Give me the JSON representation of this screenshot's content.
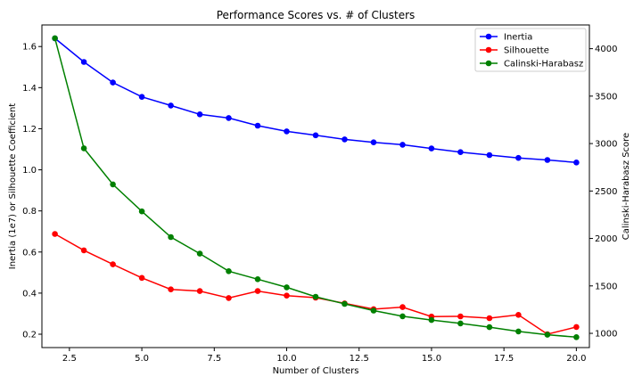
{
  "chart_data": {
    "type": "line",
    "title": "Performance Scores vs. # of Clusters",
    "xlabel": "Number of Clusters",
    "ylabel_left": "Inertia (1e7) or Silhouette Coefficient",
    "ylabel_right": "Calinski-Harabasz Score",
    "xlim": [
      1.55,
      20.45
    ],
    "ylim_left": [
      0.135,
      1.705
    ],
    "ylim_right": [
      850,
      4250
    ],
    "x_ticks": [
      2.5,
      5.0,
      7.5,
      10.0,
      12.5,
      15.0,
      17.5,
      20.0
    ],
    "x_tick_labels": [
      "2.5",
      "5.0",
      "7.5",
      "10.0",
      "12.5",
      "15.0",
      "17.5",
      "20.0"
    ],
    "y_ticks_left": [
      0.2,
      0.4,
      0.6,
      0.8,
      1.0,
      1.2,
      1.4,
      1.6
    ],
    "y_tick_labels_left": [
      "0.2",
      "0.4",
      "0.6",
      "0.8",
      "1.0",
      "1.2",
      "1.4",
      "1.6"
    ],
    "y_ticks_right": [
      1000,
      1500,
      2000,
      2500,
      3000,
      3500,
      4000
    ],
    "y_tick_labels_right": [
      "1000",
      "1500",
      "2000",
      "2500",
      "3000",
      "3500",
      "4000"
    ],
    "legend_position": "top-right",
    "grid": false,
    "x": [
      2,
      3,
      4,
      5,
      6,
      7,
      8,
      9,
      10,
      11,
      12,
      13,
      14,
      15,
      16,
      17,
      18,
      19,
      20
    ],
    "series": [
      {
        "name": "Inertia",
        "axis": "left",
        "color": "#0000ff",
        "values": [
          1.64,
          1.525,
          1.425,
          1.355,
          1.313,
          1.27,
          1.252,
          1.215,
          1.187,
          1.168,
          1.148,
          1.134,
          1.122,
          1.104,
          1.086,
          1.072,
          1.058,
          1.048,
          1.036
        ]
      },
      {
        "name": "Silhouette",
        "axis": "left",
        "color": "#ff0000",
        "values": [
          0.688,
          0.608,
          0.54,
          0.474,
          0.418,
          0.41,
          0.376,
          0.41,
          0.388,
          0.378,
          0.35,
          0.322,
          0.332,
          0.286,
          0.287,
          0.278,
          0.294,
          0.2,
          0.235
        ]
      },
      {
        "name": "Calinski-Harabasz",
        "axis": "right",
        "color": "#008000",
        "values": [
          4110,
          2950,
          2570,
          2285,
          2015,
          1840,
          1655,
          1570,
          1485,
          1385,
          1310,
          1240,
          1180,
          1140,
          1105,
          1065,
          1020,
          985,
          960
        ]
      }
    ]
  }
}
